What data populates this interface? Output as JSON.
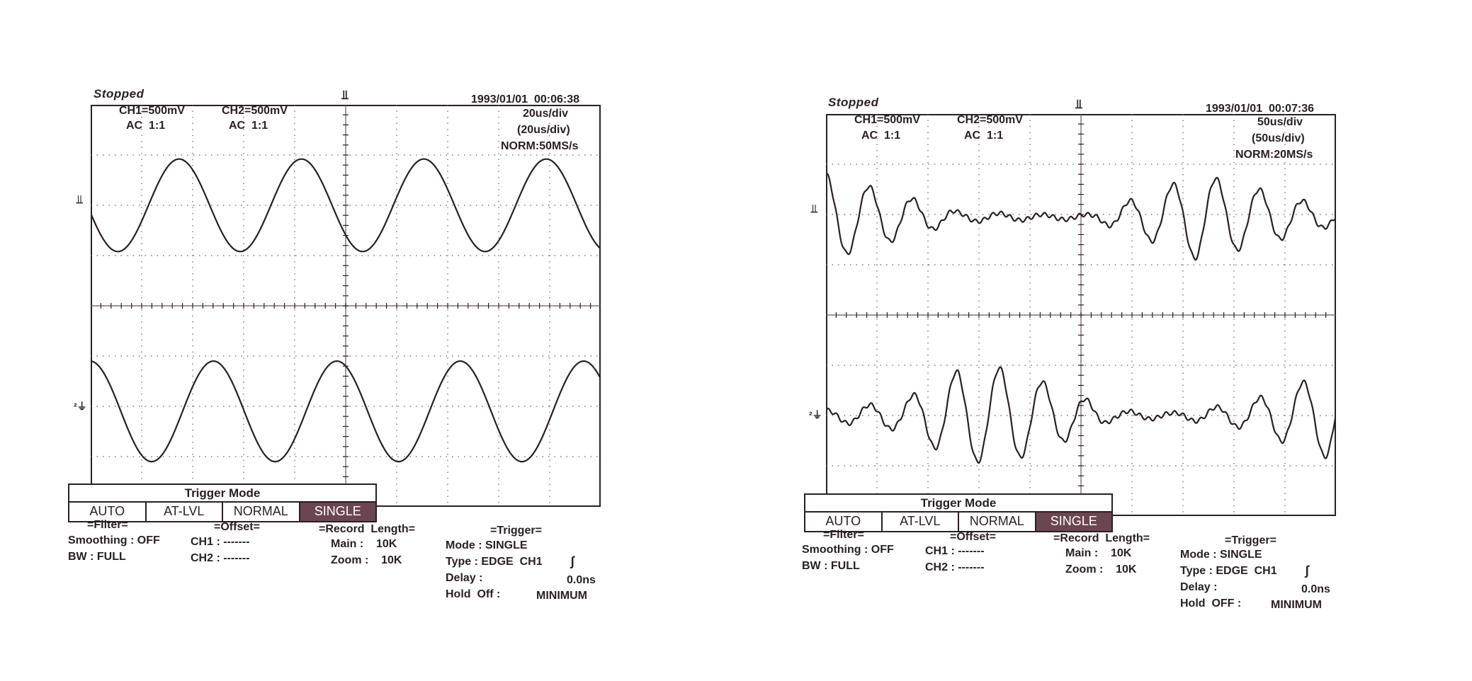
{
  "colors": {
    "trace": "#2a1f22",
    "grid": "#6b5a5f",
    "selected_bg": "#6b4650"
  },
  "chart_data": [
    {
      "type": "line",
      "status": "Stopped",
      "datetime": "1993/01/01  00:06:38",
      "ch1_scale": "CH1=500mV",
      "ch1_coupling": "AC  1:1",
      "ch2_scale": "CH2=500mV",
      "ch2_coupling": "AC  1:1",
      "timebase": "20us/div",
      "timebase_zoom": "(20us/div)",
      "sampling": "NORM:50MS/s",
      "grid": {
        "divisions_x": 10,
        "divisions_y": 8,
        "on": true
      },
      "series": [
        {
          "name": "CH1",
          "kind": "sine",
          "amplitude_div": 0.92,
          "period_div": 2.4,
          "phase_deg": 190,
          "center_div": 2.0
        },
        {
          "name": "CH2",
          "kind": "sine",
          "amplitude_div": 1.0,
          "period_div": 2.42,
          "phase_deg": 92,
          "center_div": -2.1
        }
      ],
      "trigger_menu": {
        "title": "Trigger Mode",
        "options": [
          "AUTO",
          "AT-LVL",
          "NORMAL",
          "SINGLE"
        ],
        "selected": "SINGLE"
      },
      "filter": {
        "header": "=Filter=",
        "smoothing": "Smoothing : OFF",
        "bw": "BW : FULL"
      },
      "offset": {
        "header": "=Offset=",
        "ch1": "CH1 : -------",
        "ch2": "CH2 : -------"
      },
      "record": {
        "header": "=Record  Length=",
        "main": "Main :    10K",
        "zoom": "Zoom :    10K"
      },
      "trigger": {
        "header": "=Trigger=",
        "mode": "Mode : SINGLE",
        "type": "Type : EDGE  CH1",
        "delay": "Delay :",
        "delay_value": "0.0ns",
        "holdoff": "Hold  Off :",
        "holdoff_value": "MINIMUM"
      }
    },
    {
      "type": "line",
      "status": "Stopped",
      "datetime": "1993/01/01  00:07:36",
      "ch1_scale": "CH1=500mV",
      "ch1_coupling": "AC  1:1",
      "ch2_scale": "CH2=500mV",
      "ch2_coupling": "AC  1:1",
      "timebase": "50us/div",
      "timebase_zoom": "(50us/div)",
      "sampling": "NORM:20MS/s",
      "grid": {
        "divisions_x": 10,
        "divisions_y": 8,
        "on": true
      },
      "series": [
        {
          "name": "CH1",
          "kind": "beat",
          "period_div": 0.85,
          "center_div": 1.95,
          "amplitude_points": [
            [
              0,
              0.85
            ],
            [
              1.4,
              0.45
            ],
            [
              2.6,
              0.1
            ],
            [
              4.3,
              0.05
            ],
            [
              5.2,
              0.05
            ],
            [
              6.3,
              0.45
            ],
            [
              7.3,
              0.85
            ],
            [
              8.5,
              0.55
            ],
            [
              10,
              0.15
            ]
          ]
        },
        {
          "name": "CH2",
          "kind": "beat",
          "period_div": 0.85,
          "center_div": -2.0,
          "amplitude_points": [
            [
              0,
              0.1
            ],
            [
              1.5,
              0.3
            ],
            [
              2.6,
              0.9
            ],
            [
              3.5,
              0.95
            ],
            [
              4.7,
              0.5
            ],
            [
              5.6,
              0.1
            ],
            [
              6.8,
              0.05
            ],
            [
              8.2,
              0.25
            ],
            [
              10,
              0.9
            ]
          ]
        }
      ],
      "trigger_menu": {
        "title": "Trigger  Mode",
        "options": [
          "AUTO",
          "AT-LVL",
          "NORMAL",
          "SINGLE"
        ],
        "selected": "SINGLE"
      },
      "filter": {
        "header": "=Filter=",
        "smoothing": "Smoothing : OFF",
        "bw": "BW : FULL"
      },
      "offset": {
        "header": "=Offset=",
        "ch1": "CH1 : -------",
        "ch2": "CH2 : -------"
      },
      "record": {
        "header": "=Record  Length=",
        "main": "Main :    10K",
        "zoom": "Zoom :    10K"
      },
      "trigger": {
        "header": "=Trigger=",
        "mode": "Mode : SINGLE",
        "type": "Type : EDGE  CH1",
        "delay": "Delay :",
        "delay_value": "0.0ns",
        "holdoff": "Hold  OFF :",
        "holdoff_value": "MINIMUM"
      }
    }
  ]
}
